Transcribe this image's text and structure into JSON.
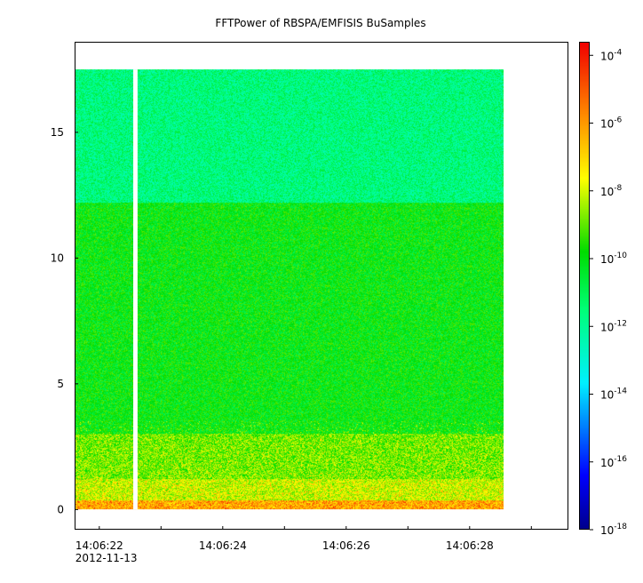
{
  "chart_data": {
    "type": "heatmap",
    "title": "FFTPower of RBSPA/EMFISIS  BuSamples",
    "xlabel": "",
    "ylabel": "",
    "x_ticks": [
      "14:06:22",
      "14:06:24",
      "14:06:26",
      "14:06:28"
    ],
    "x_tick_values_sec": [
      22,
      24,
      26,
      28
    ],
    "x_subtitle": "2012-11-13",
    "x_range_sec": [
      21.6,
      29.6
    ],
    "data_x_range_sec": [
      21.6,
      28.55
    ],
    "data_gap_sec": [
      22.55,
      22.62
    ],
    "y_ticks": [
      0,
      5,
      10,
      15
    ],
    "ylim": [
      -0.8,
      18.6
    ],
    "data_y_range": [
      0.0,
      17.5
    ],
    "colorbar": {
      "scale": "log",
      "range_exp": [
        -18,
        -3.6
      ],
      "tick_base": "10",
      "tick_exponents": [
        -4,
        -6,
        -8,
        -10,
        -12,
        -14,
        -16,
        -18
      ],
      "colormap": "rainbow"
    },
    "power_profile_log10": [
      {
        "freq_range": [
          0.0,
          0.35
        ],
        "value": -6.5
      },
      {
        "freq_range": [
          0.35,
          1.2
        ],
        "value": -8.3
      },
      {
        "freq_range": [
          1.2,
          3.0
        ],
        "value": -9.0
      },
      {
        "freq_range": [
          3.0,
          12.2
        ],
        "value": -10.0
      },
      {
        "freq_range": [
          12.2,
          17.5
        ],
        "value": -11.6
      }
    ]
  }
}
